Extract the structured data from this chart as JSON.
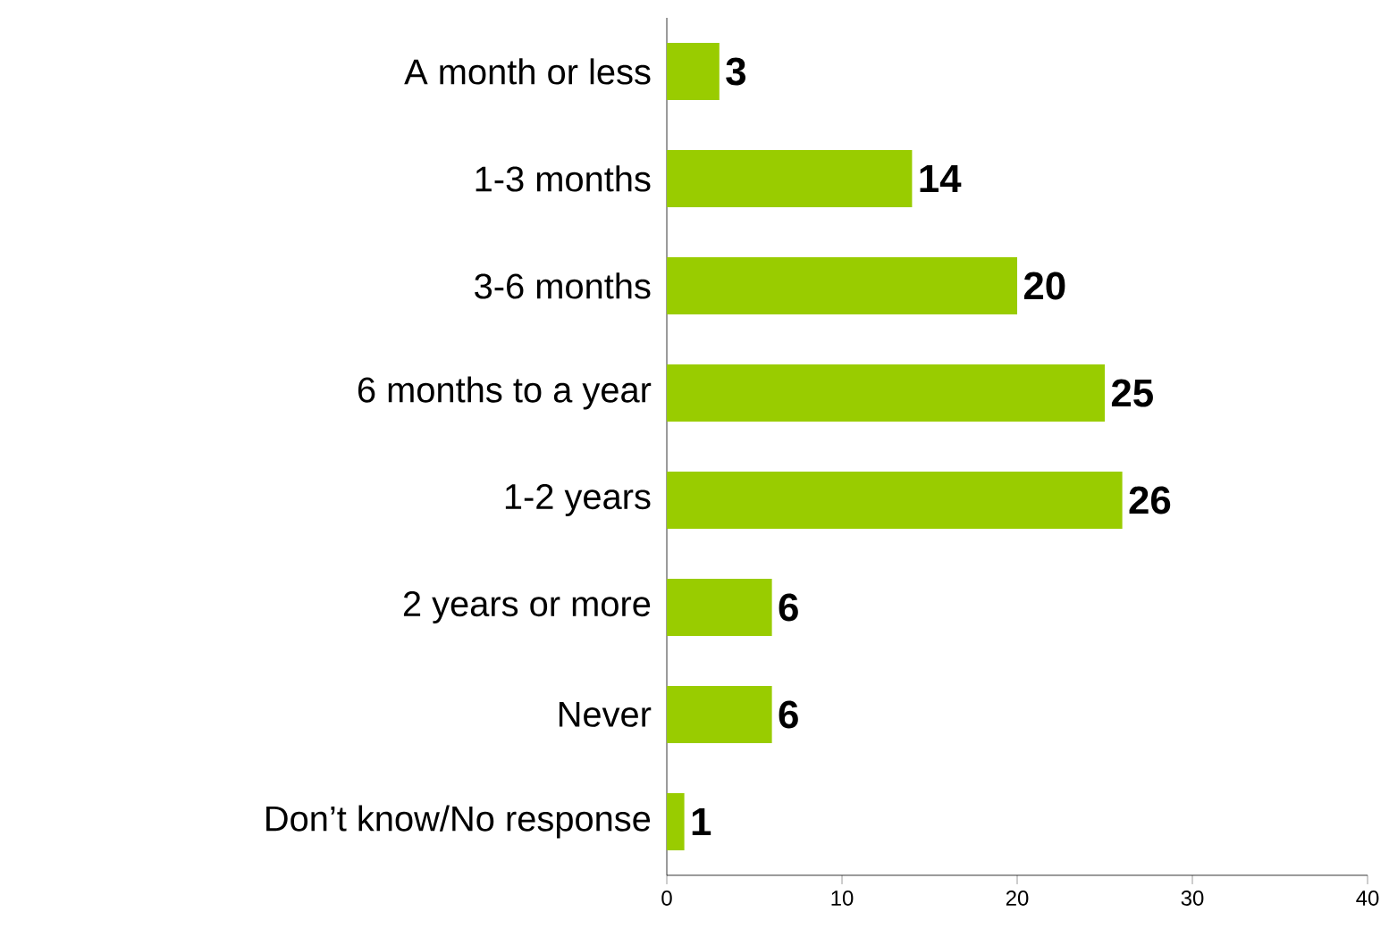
{
  "chart_data": {
    "type": "bar",
    "orientation": "horizontal",
    "categories": [
      "A month or less",
      "1-3 months",
      "3-6 months",
      "6 months to a year",
      "1-2 years",
      "2 years or more",
      "Never",
      "Don’t know/No response"
    ],
    "values": [
      3,
      14,
      20,
      25,
      26,
      6,
      6,
      1
    ],
    "color": "#99cc00",
    "data_labels": true,
    "xlim": [
      0,
      40
    ],
    "xticks": [
      0,
      10,
      20,
      30,
      40
    ],
    "grid": false
  }
}
